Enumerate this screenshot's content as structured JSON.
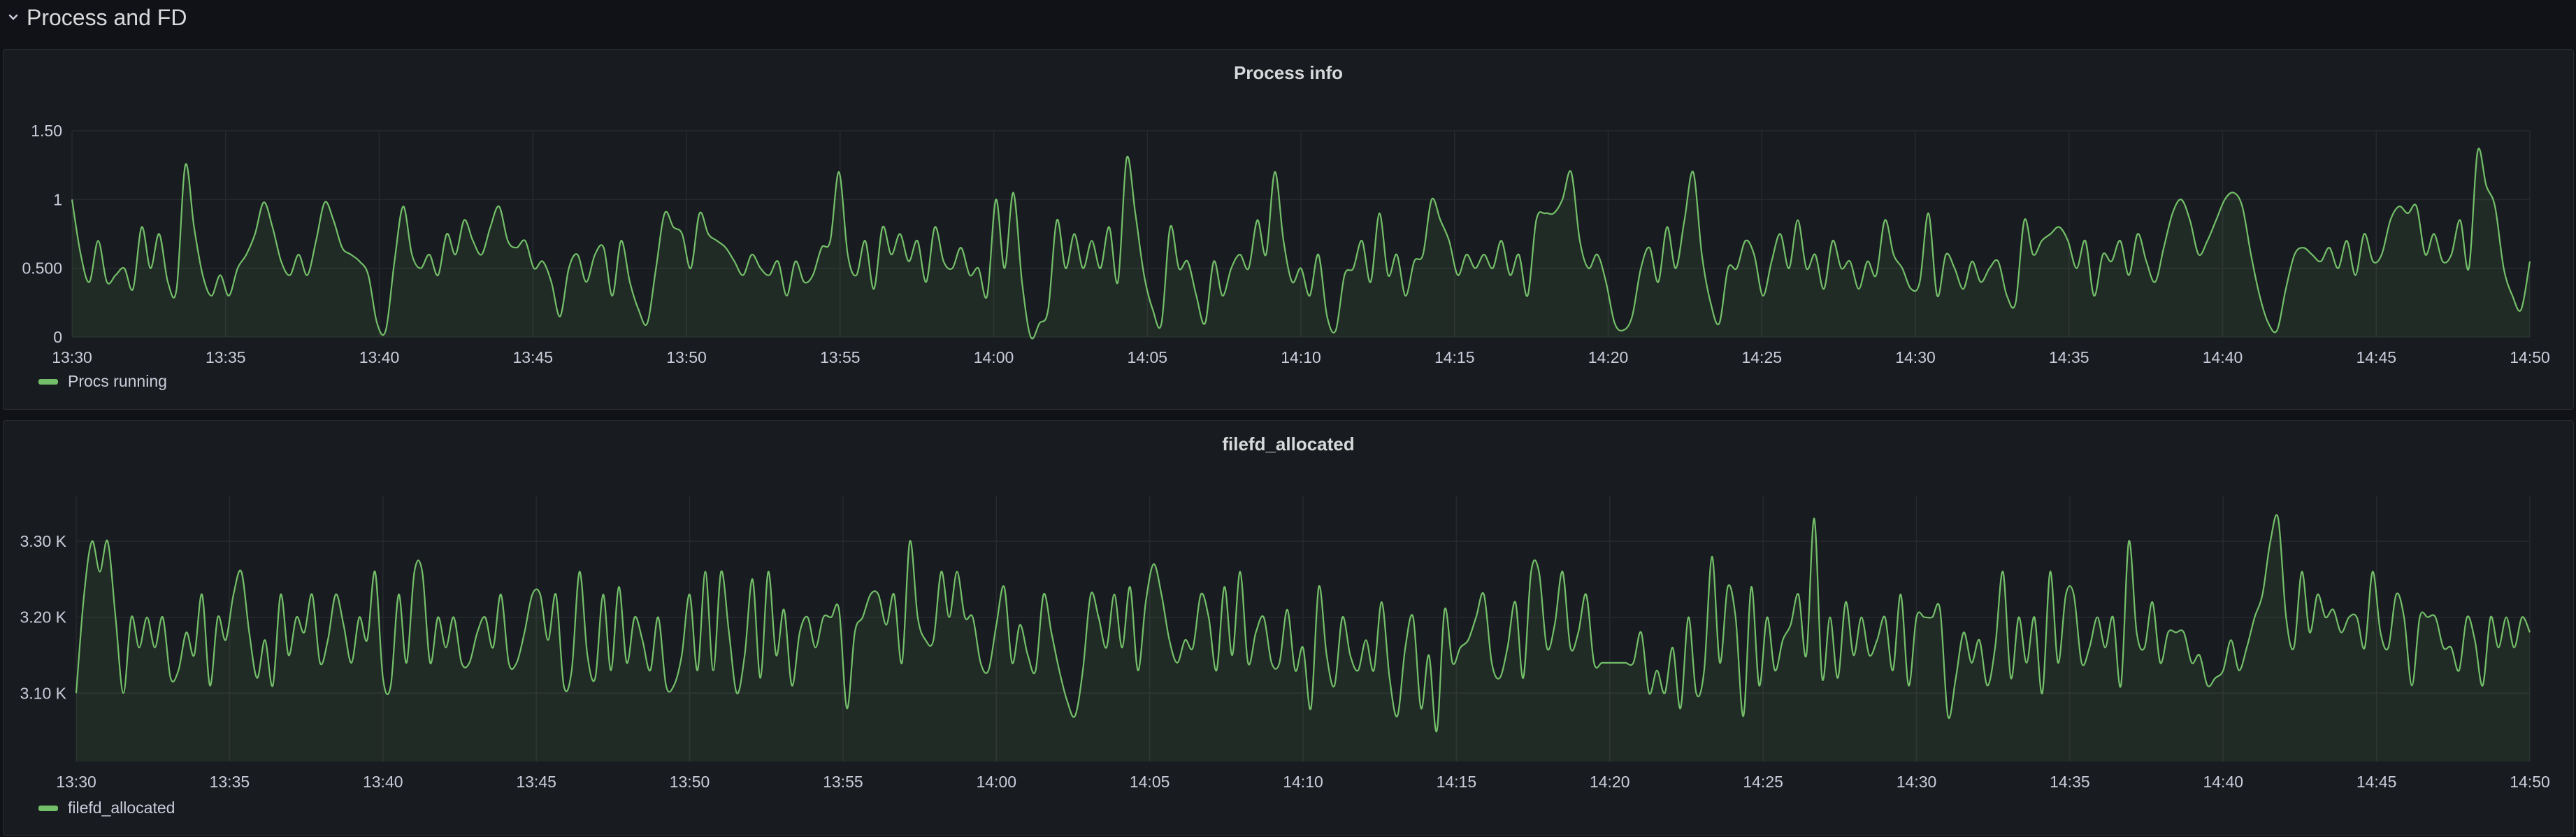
{
  "row": {
    "title": "Process and FD"
  },
  "colors": {
    "series": "#73bf69",
    "fill": "rgba(115,191,105,0.10)",
    "grid": "#26292e"
  },
  "chart_data": [
    {
      "type": "line",
      "title": "Process info",
      "xlabel": "",
      "ylabel": "",
      "x_ticks": [
        "13:30",
        "13:35",
        "13:40",
        "13:45",
        "13:50",
        "13:55",
        "14:00",
        "14:05",
        "14:10",
        "14:15",
        "14:20",
        "14:25",
        "14:30",
        "14:35",
        "14:40",
        "14:45",
        "14:50"
      ],
      "y_ticks": [
        {
          "value": 0,
          "label": "0"
        },
        {
          "value": 0.5,
          "label": "0.500"
        },
        {
          "value": 1,
          "label": "1"
        },
        {
          "value": 1.5,
          "label": "1.50"
        }
      ],
      "ylim": [
        0,
        1.5
      ],
      "legend_placement": "bottom-left",
      "series": [
        {
          "name": "Procs running",
          "values": [
            1.0,
            0.6,
            0.4,
            0.7,
            0.4,
            0.45,
            0.5,
            0.35,
            0.8,
            0.5,
            0.75,
            0.4,
            0.35,
            1.25,
            0.8,
            0.45,
            0.3,
            0.45,
            0.3,
            0.5,
            0.6,
            0.75,
            0.98,
            0.8,
            0.55,
            0.45,
            0.6,
            0.45,
            0.7,
            0.98,
            0.85,
            0.65,
            0.6,
            0.55,
            0.45,
            0.1,
            0.05,
            0.55,
            0.95,
            0.6,
            0.5,
            0.6,
            0.45,
            0.75,
            0.6,
            0.85,
            0.7,
            0.6,
            0.8,
            0.95,
            0.7,
            0.65,
            0.7,
            0.5,
            0.55,
            0.4,
            0.15,
            0.5,
            0.6,
            0.4,
            0.6,
            0.65,
            0.3,
            0.7,
            0.4,
            0.2,
            0.1,
            0.5,
            0.9,
            0.8,
            0.75,
            0.5,
            0.9,
            0.75,
            0.7,
            0.65,
            0.55,
            0.45,
            0.6,
            0.5,
            0.45,
            0.55,
            0.3,
            0.55,
            0.4,
            0.45,
            0.65,
            0.7,
            1.2,
            0.6,
            0.45,
            0.7,
            0.35,
            0.8,
            0.6,
            0.75,
            0.55,
            0.7,
            0.4,
            0.8,
            0.55,
            0.5,
            0.65,
            0.45,
            0.5,
            0.3,
            1.0,
            0.5,
            1.05,
            0.4,
            0.0,
            0.1,
            0.2,
            0.85,
            0.5,
            0.75,
            0.5,
            0.7,
            0.5,
            0.8,
            0.4,
            1.3,
            0.9,
            0.45,
            0.2,
            0.1,
            0.8,
            0.5,
            0.55,
            0.3,
            0.1,
            0.55,
            0.3,
            0.5,
            0.6,
            0.5,
            0.85,
            0.6,
            1.2,
            0.7,
            0.4,
            0.5,
            0.3,
            0.6,
            0.15,
            0.05,
            0.45,
            0.5,
            0.7,
            0.4,
            0.9,
            0.45,
            0.6,
            0.3,
            0.55,
            0.6,
            1.0,
            0.85,
            0.7,
            0.45,
            0.6,
            0.5,
            0.6,
            0.5,
            0.7,
            0.45,
            0.6,
            0.3,
            0.85,
            0.9,
            0.9,
            1.0,
            1.2,
            0.7,
            0.5,
            0.6,
            0.4,
            0.1,
            0.05,
            0.15,
            0.5,
            0.65,
            0.4,
            0.8,
            0.5,
            0.85,
            1.2,
            0.6,
            0.25,
            0.1,
            0.5,
            0.5,
            0.7,
            0.6,
            0.3,
            0.55,
            0.75,
            0.5,
            0.85,
            0.5,
            0.6,
            0.35,
            0.7,
            0.5,
            0.55,
            0.35,
            0.55,
            0.45,
            0.85,
            0.6,
            0.5,
            0.35,
            0.4,
            0.9,
            0.3,
            0.6,
            0.5,
            0.35,
            0.55,
            0.4,
            0.5,
            0.55,
            0.3,
            0.25,
            0.85,
            0.6,
            0.7,
            0.75,
            0.8,
            0.7,
            0.5,
            0.7,
            0.3,
            0.6,
            0.55,
            0.7,
            0.45,
            0.75,
            0.55,
            0.4,
            0.65,
            0.9,
            1.0,
            0.85,
            0.6,
            0.7,
            0.85,
            1.0,
            1.05,
            0.95,
            0.6,
            0.3,
            0.1,
            0.05,
            0.35,
            0.6,
            0.65,
            0.6,
            0.55,
            0.65,
            0.5,
            0.7,
            0.45,
            0.75,
            0.55,
            0.6,
            0.85,
            0.95,
            0.9,
            0.95,
            0.6,
            0.75,
            0.55,
            0.6,
            0.85,
            0.5,
            1.35,
            1.1,
            0.95,
            0.5,
            0.3,
            0.2,
            0.55
          ]
        }
      ]
    },
    {
      "type": "line",
      "title": "filefd_allocated",
      "xlabel": "",
      "ylabel": "",
      "x_ticks": [
        "13:30",
        "13:35",
        "13:40",
        "13:45",
        "13:50",
        "13:55",
        "14:00",
        "14:05",
        "14:10",
        "14:15",
        "14:20",
        "14:25",
        "14:30",
        "14:35",
        "14:40",
        "14:45",
        "14:50"
      ],
      "y_ticks": [
        {
          "value": 3100,
          "label": "3.10 K"
        },
        {
          "value": 3200,
          "label": "3.20 K"
        },
        {
          "value": 3300,
          "label": "3.30 K"
        }
      ],
      "ylim": [
        3010,
        3360
      ],
      "legend_placement": "bottom-left",
      "series": [
        {
          "name": "filefd_allocated",
          "values": [
            3100,
            3230,
            3300,
            3260,
            3300,
            3200,
            3100,
            3200,
            3160,
            3200,
            3160,
            3200,
            3120,
            3130,
            3180,
            3150,
            3230,
            3110,
            3200,
            3170,
            3230,
            3260,
            3180,
            3120,
            3170,
            3110,
            3230,
            3150,
            3200,
            3180,
            3230,
            3140,
            3170,
            3230,
            3190,
            3140,
            3200,
            3170,
            3260,
            3120,
            3110,
            3230,
            3140,
            3260,
            3260,
            3140,
            3200,
            3160,
            3200,
            3140,
            3140,
            3180,
            3200,
            3160,
            3230,
            3140,
            3140,
            3180,
            3230,
            3230,
            3170,
            3230,
            3110,
            3130,
            3260,
            3150,
            3120,
            3230,
            3130,
            3240,
            3140,
            3200,
            3170,
            3130,
            3200,
            3110,
            3110,
            3150,
            3230,
            3130,
            3260,
            3130,
            3260,
            3180,
            3100,
            3150,
            3250,
            3120,
            3260,
            3150,
            3210,
            3110,
            3180,
            3200,
            3160,
            3200,
            3200,
            3210,
            3080,
            3180,
            3200,
            3230,
            3230,
            3190,
            3230,
            3140,
            3300,
            3200,
            3170,
            3170,
            3260,
            3200,
            3260,
            3200,
            3200,
            3140,
            3130,
            3190,
            3240,
            3140,
            3190,
            3150,
            3130,
            3230,
            3180,
            3130,
            3090,
            3070,
            3130,
            3230,
            3200,
            3160,
            3230,
            3160,
            3240,
            3130,
            3220,
            3270,
            3230,
            3170,
            3140,
            3170,
            3160,
            3230,
            3200,
            3130,
            3240,
            3150,
            3260,
            3140,
            3180,
            3200,
            3140,
            3140,
            3210,
            3130,
            3160,
            3080,
            3240,
            3150,
            3110,
            3200,
            3150,
            3130,
            3170,
            3130,
            3220,
            3120,
            3070,
            3160,
            3200,
            3080,
            3150,
            3050,
            3210,
            3140,
            3160,
            3170,
            3200,
            3230,
            3140,
            3120,
            3160,
            3220,
            3120,
            3260,
            3260,
            3160,
            3190,
            3260,
            3160,
            3180,
            3230,
            3140,
            3140,
            3140,
            3140,
            3140,
            3140,
            3180,
            3100,
            3130,
            3100,
            3160,
            3080,
            3200,
            3100,
            3130,
            3280,
            3140,
            3240,
            3200,
            3070,
            3240,
            3110,
            3200,
            3130,
            3170,
            3190,
            3230,
            3150,
            3330,
            3120,
            3200,
            3120,
            3220,
            3150,
            3200,
            3150,
            3170,
            3200,
            3130,
            3230,
            3110,
            3200,
            3200,
            3200,
            3210,
            3070,
            3120,
            3180,
            3140,
            3170,
            3110,
            3160,
            3260,
            3120,
            3200,
            3140,
            3200,
            3100,
            3260,
            3140,
            3230,
            3230,
            3140,
            3160,
            3200,
            3160,
            3200,
            3110,
            3300,
            3180,
            3160,
            3220,
            3140,
            3180,
            3180,
            3180,
            3140,
            3150,
            3110,
            3120,
            3130,
            3170,
            3130,
            3160,
            3200,
            3230,
            3300,
            3330,
            3200,
            3160,
            3260,
            3180,
            3230,
            3200,
            3210,
            3180,
            3200,
            3200,
            3160,
            3260,
            3180,
            3160,
            3230,
            3200,
            3110,
            3200,
            3200,
            3200,
            3160,
            3160,
            3130,
            3200,
            3170,
            3110,
            3200,
            3160,
            3200,
            3160,
            3200,
            3180
          ]
        }
      ]
    }
  ]
}
